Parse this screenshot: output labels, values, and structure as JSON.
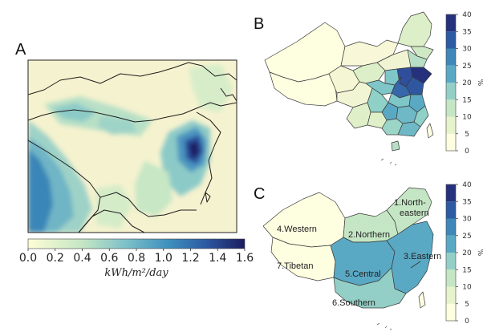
{
  "panels": {
    "a": {
      "letter": "A",
      "colorbar": {
        "ticks": [
          "0.0",
          "0.2",
          "0.4",
          "0.6",
          "0.8",
          "1.0",
          "1.2",
          "1.4",
          "1.6"
        ],
        "range": [
          0.0,
          1.6
        ],
        "unit": "kWh/m²/day"
      }
    },
    "b": {
      "letter": "B",
      "colorbar": {
        "ticks": [
          "0",
          "5",
          "10",
          "15",
          "20",
          "25",
          "30",
          "35",
          "40"
        ],
        "range": [
          0,
          40
        ],
        "unit": "%"
      }
    },
    "c": {
      "letter": "C",
      "colorbar": {
        "ticks": [
          "0",
          "5",
          "10",
          "15",
          "20",
          "25",
          "30",
          "35",
          "40"
        ],
        "range": [
          0,
          40
        ],
        "unit": "%"
      },
      "regions": [
        {
          "label": "1.North-",
          "label2": "eastern",
          "value": 12
        },
        {
          "label": "2.Northern",
          "value": 10
        },
        {
          "label": "3.Eastern",
          "value": 24
        },
        {
          "label": "4.Western",
          "value": 4
        },
        {
          "label": "5.Central",
          "value": 20
        },
        {
          "label": "6.Southern",
          "value": 15
        },
        {
          "label": "7.Tibetan",
          "value": 1
        }
      ]
    }
  },
  "colors": {
    "scale_low": "#fdfdd6",
    "scale_mid": "#64b4c6",
    "scale_high": "#28307e",
    "scale_top": "#1b1c5e",
    "border": "#1d1d1d"
  }
}
